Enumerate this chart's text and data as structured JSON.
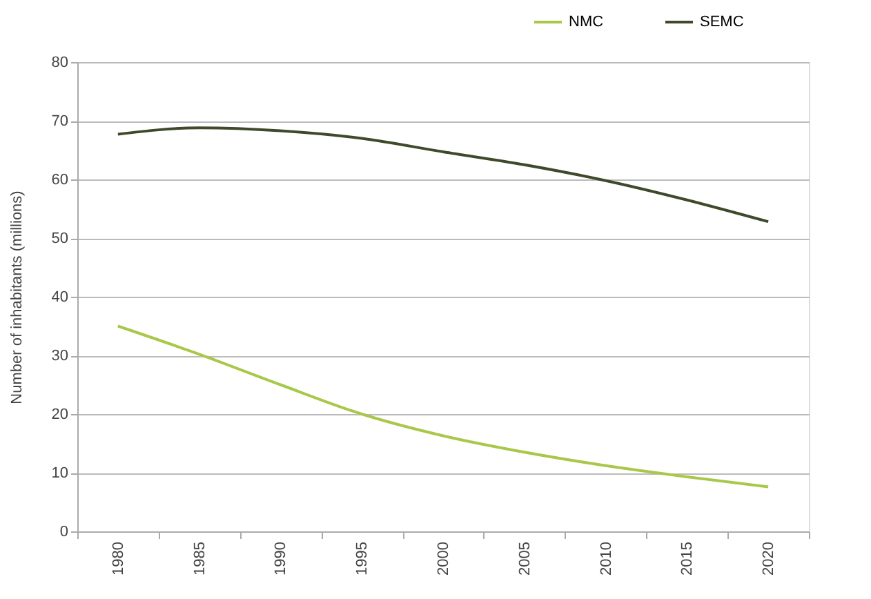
{
  "chart_data": {
    "type": "line",
    "ylabel": "Number of inhabitants (millions)",
    "categories": [
      "1980",
      "1985",
      "1990",
      "1995",
      "2000",
      "2005",
      "2010",
      "2015",
      "2020"
    ],
    "series": [
      {
        "name": "NMC",
        "color": "#a8c84a",
        "values": [
          35,
          30.2,
          25,
          20,
          16.3,
          13.5,
          11.2,
          9.3,
          7.6
        ]
      },
      {
        "name": "SEMC",
        "color": "#3f4a2a",
        "values": [
          67.7,
          68.8,
          68.3,
          67,
          64.7,
          62.5,
          59.8,
          56.5,
          52.8
        ]
      }
    ],
    "ylim": [
      0,
      80
    ],
    "yticks": [
      0,
      10,
      20,
      30,
      40,
      50,
      60,
      70,
      80
    ],
    "grid": "y",
    "legend": "top right",
    "marker": "none",
    "line_style": "solid"
  }
}
